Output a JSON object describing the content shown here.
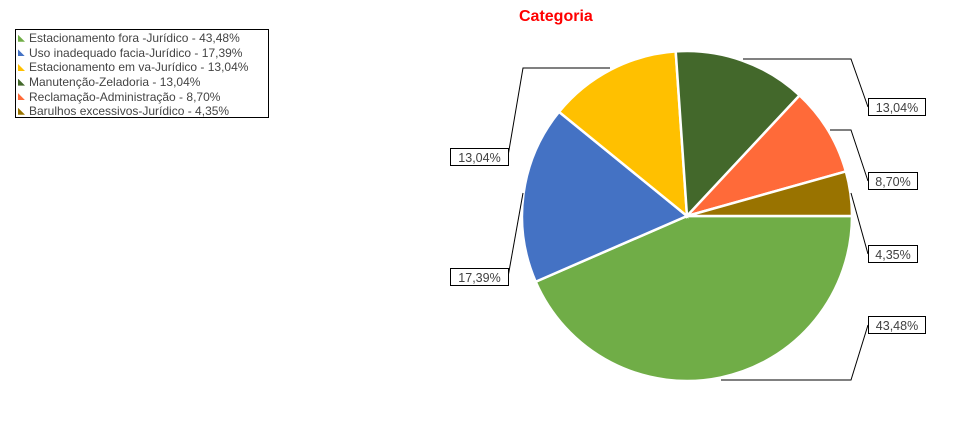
{
  "chart_data": {
    "type": "pie",
    "title": "Categoria",
    "legend_position": "top-left",
    "slices": [
      {
        "legend": "Estacionamento fora -Jurídico - 43,48%",
        "label": "43,48%",
        "value": 43.48,
        "color": "#70AD47"
      },
      {
        "legend": "Uso inadequado facia-Jurídico - 17,39%",
        "label": "17,39%",
        "value": 17.39,
        "color": "#4472C4"
      },
      {
        "legend": "Estacionamento em va-Jurídico - 13,04%",
        "label": "13,04%",
        "value": 13.04,
        "color": "#FFC000"
      },
      {
        "legend": "Manutenção-Zeladoria - 13,04%",
        "label": "13,04%",
        "value": 13.04,
        "color": "#43682B"
      },
      {
        "legend": "Reclamação-Administração - 8,70%",
        "label": "8,70%",
        "value": 8.7,
        "color": "#FF6A39"
      },
      {
        "legend": "Barulhos excessivos-Jurídico - 4,35%",
        "label": "4,35%",
        "value": 4.35,
        "color": "#997300"
      }
    ]
  }
}
